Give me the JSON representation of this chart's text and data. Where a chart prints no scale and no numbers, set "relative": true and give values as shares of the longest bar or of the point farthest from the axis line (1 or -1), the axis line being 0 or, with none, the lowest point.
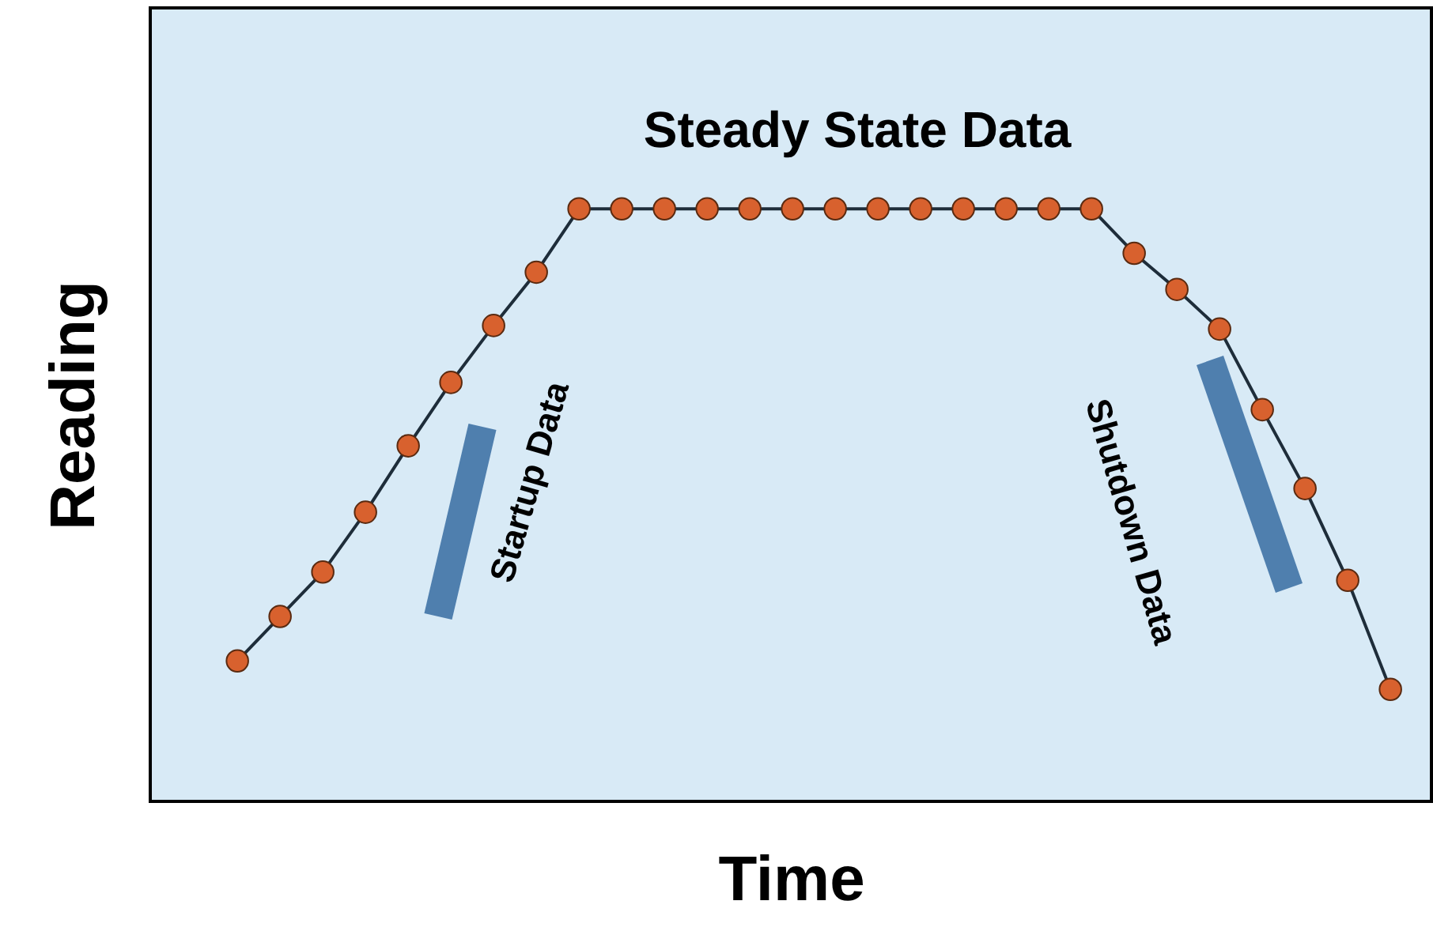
{
  "chart_data": {
    "type": "line",
    "relative": true,
    "xlabel": "Time",
    "ylabel": "Reading",
    "tick_labels": false,
    "grid": false,
    "marker": "circle",
    "color": "#d8612e",
    "annotations": [
      "Steady State Data",
      "Startup Data",
      "Shutdown Data"
    ],
    "categories": [
      null,
      null,
      null,
      null,
      null,
      null,
      null,
      null,
      null,
      null,
      null,
      null,
      null,
      null,
      null,
      null,
      null,
      null,
      null,
      null,
      null,
      null,
      null,
      null,
      null,
      null,
      null,
      null
    ],
    "series": [
      {
        "color": "#1e2d3a",
        "values": [
          0.237,
          0.312,
          0.387,
          0.488,
          0.6,
          0.707,
          0.803,
          0.893,
          1,
          1,
          1,
          1,
          1,
          1,
          1,
          1,
          1,
          1,
          1,
          1,
          1,
          0.925,
          0.864,
          0.797,
          0.661,
          0.528,
          0.373,
          0.189
        ]
      }
    ]
  }
}
